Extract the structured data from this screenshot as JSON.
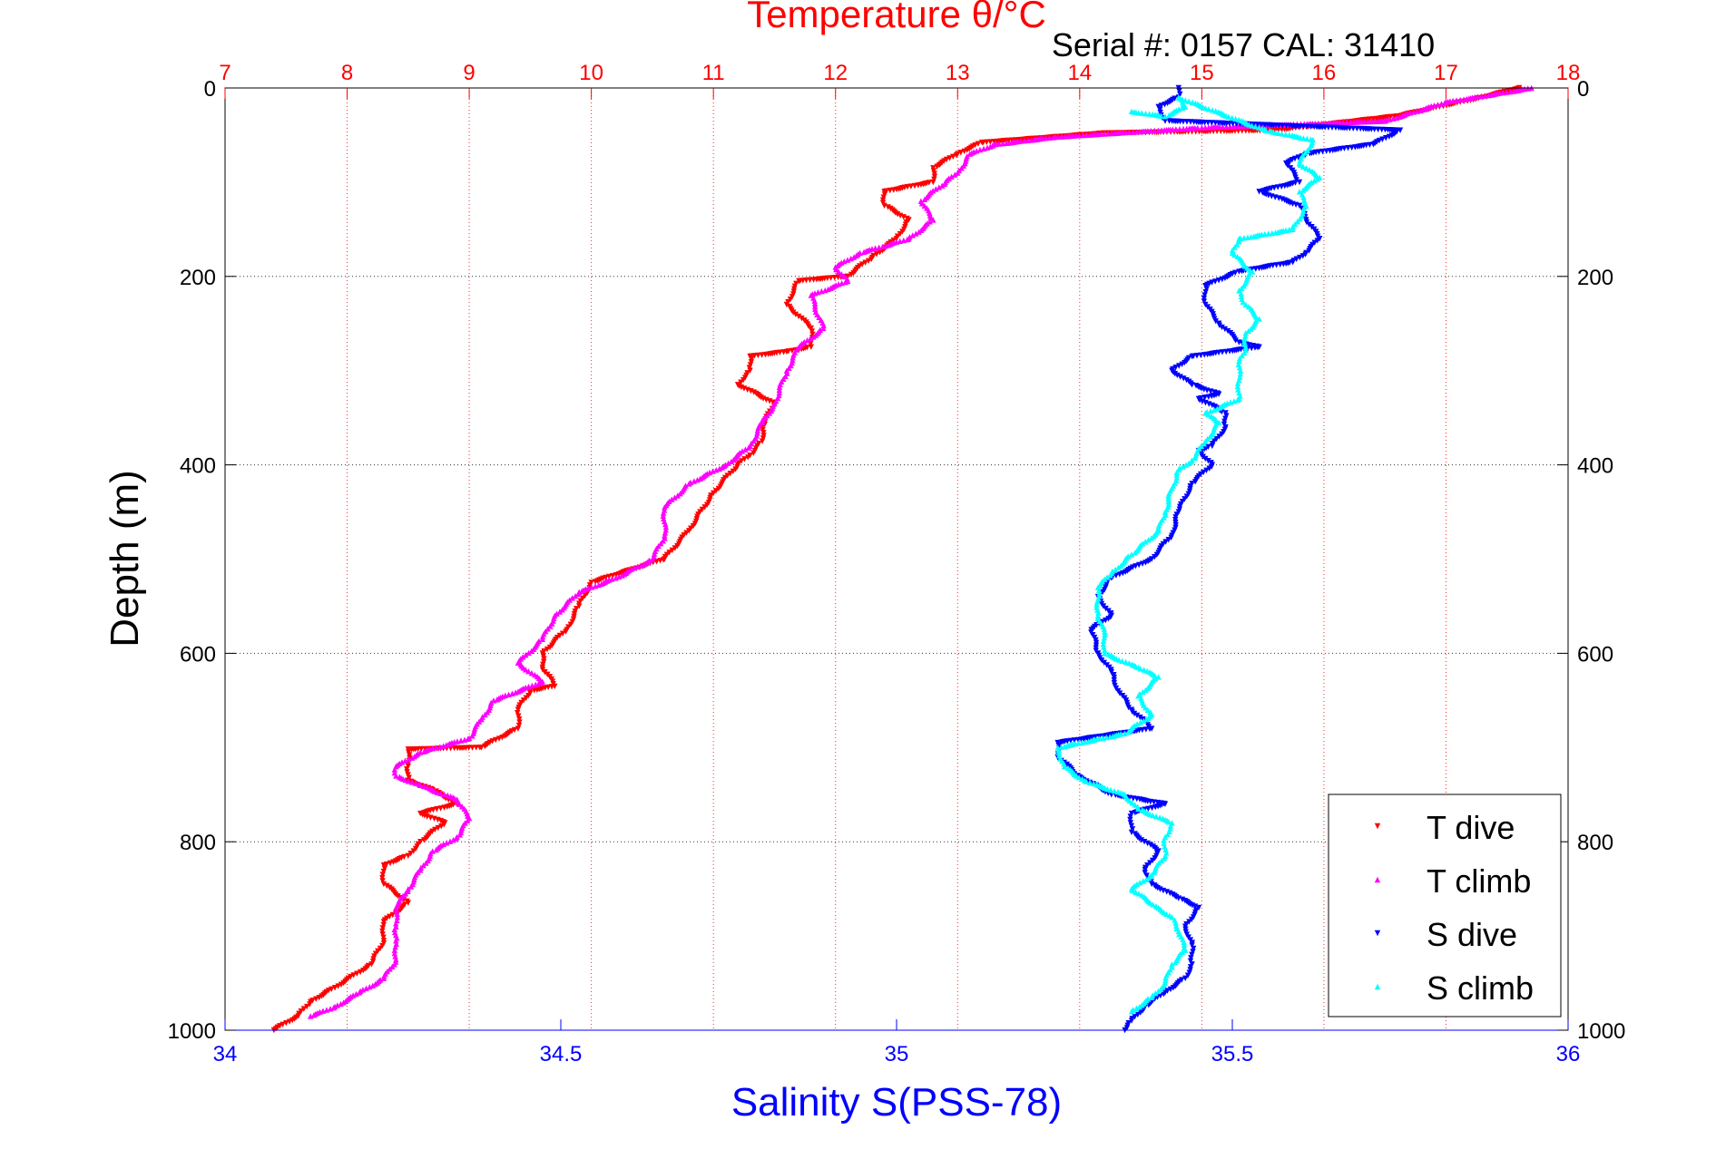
{
  "chart_data": {
    "type": "scatter",
    "title": "Temperature θ/°C",
    "subtitle": "Serial #: 0157  CAL: 31410",
    "ylabel": "Depth (m)",
    "xlabel": "Salinity S(PSS-78)",
    "ylim": [
      0,
      1000
    ],
    "y_reversed": true,
    "yticks": [
      0,
      200,
      400,
      600,
      800,
      1000
    ],
    "x_top": {
      "label": "Temperature θ/°C",
      "range": [
        7,
        18
      ],
      "ticks": [
        7,
        8,
        9,
        10,
        11,
        12,
        13,
        14,
        15,
        16,
        17,
        18
      ],
      "color": "#ff0000"
    },
    "x_bottom": {
      "label": "Salinity S(PSS-78)",
      "range": [
        34,
        36
      ],
      "ticks": [
        34,
        34.5,
        35,
        35.5,
        36
      ],
      "color": "#0000ff"
    },
    "grid": true,
    "legend_position": "bottom-right",
    "series": [
      {
        "name": "T dive",
        "axis": "temperature",
        "color": "#ff0000",
        "marker": "triangle-down",
        "points": [
          [
            17.6,
            0
          ],
          [
            17.3,
            10
          ],
          [
            16.6,
            30
          ],
          [
            15.6,
            45
          ],
          [
            14.2,
            48
          ],
          [
            13.2,
            58
          ],
          [
            13.0,
            70
          ],
          [
            12.8,
            85
          ],
          [
            12.8,
            100
          ],
          [
            12.4,
            110
          ],
          [
            12.4,
            125
          ],
          [
            12.6,
            140
          ],
          [
            12.5,
            160
          ],
          [
            12.3,
            180
          ],
          [
            12.1,
            200
          ],
          [
            11.7,
            205
          ],
          [
            11.6,
            230
          ],
          [
            11.8,
            255
          ],
          [
            11.8,
            275
          ],
          [
            11.6,
            280
          ],
          [
            11.3,
            285
          ],
          [
            11.3,
            300
          ],
          [
            11.2,
            315
          ],
          [
            11.5,
            335
          ],
          [
            11.4,
            360
          ],
          [
            11.4,
            375
          ],
          [
            11.3,
            390
          ],
          [
            11.2,
            400
          ],
          [
            11.0,
            430
          ],
          [
            10.8,
            470
          ],
          [
            10.6,
            500
          ],
          [
            10.0,
            525
          ],
          [
            9.9,
            550
          ],
          [
            9.8,
            575
          ],
          [
            9.6,
            600
          ],
          [
            9.6,
            615
          ],
          [
            9.7,
            635
          ],
          [
            9.5,
            640
          ],
          [
            9.4,
            660
          ],
          [
            9.4,
            680
          ],
          [
            9.1,
            700
          ],
          [
            8.5,
            702
          ],
          [
            8.5,
            720
          ],
          [
            8.5,
            735
          ],
          [
            8.7,
            745
          ],
          [
            8.9,
            760
          ],
          [
            8.6,
            770
          ],
          [
            8.8,
            780
          ],
          [
            8.6,
            800
          ],
          [
            8.5,
            815
          ],
          [
            8.3,
            825
          ],
          [
            8.3,
            845
          ],
          [
            8.5,
            865
          ],
          [
            8.3,
            885
          ],
          [
            8.3,
            905
          ],
          [
            8.2,
            930
          ],
          [
            7.9,
            955
          ],
          [
            7.7,
            970
          ],
          [
            7.6,
            985
          ],
          [
            7.4,
            1000
          ]
        ]
      },
      {
        "name": "T climb",
        "axis": "temperature",
        "color": "#ff00ff",
        "marker": "triangle-up",
        "points": [
          [
            17.7,
            0
          ],
          [
            17.0,
            15
          ],
          [
            16.5,
            35
          ],
          [
            15.0,
            42
          ],
          [
            13.8,
            52
          ],
          [
            13.3,
            60
          ],
          [
            13.1,
            70
          ],
          [
            13.0,
            90
          ],
          [
            12.9,
            100
          ],
          [
            12.7,
            120
          ],
          [
            12.8,
            140
          ],
          [
            12.6,
            160
          ],
          [
            12.2,
            175
          ],
          [
            12.0,
            190
          ],
          [
            12.1,
            205
          ],
          [
            11.8,
            220
          ],
          [
            11.9,
            255
          ],
          [
            11.7,
            275
          ],
          [
            11.6,
            300
          ],
          [
            11.5,
            335
          ],
          [
            11.4,
            355
          ],
          [
            11.3,
            380
          ],
          [
            11.1,
            400
          ],
          [
            10.8,
            420
          ],
          [
            10.6,
            445
          ],
          [
            10.6,
            475
          ],
          [
            10.5,
            500
          ],
          [
            10.2,
            520
          ],
          [
            9.9,
            535
          ],
          [
            9.7,
            560
          ],
          [
            9.6,
            585
          ],
          [
            9.4,
            610
          ],
          [
            9.6,
            630
          ],
          [
            9.2,
            650
          ],
          [
            9.1,
            670
          ],
          [
            9.0,
            690
          ],
          [
            8.6,
            705
          ],
          [
            8.4,
            720
          ],
          [
            8.4,
            730
          ],
          [
            8.6,
            740
          ],
          [
            8.9,
            755
          ],
          [
            9.0,
            775
          ],
          [
            8.9,
            795
          ],
          [
            8.7,
            810
          ],
          [
            8.6,
            830
          ],
          [
            8.5,
            850
          ],
          [
            8.4,
            870
          ],
          [
            8.4,
            890
          ],
          [
            8.4,
            905
          ],
          [
            8.4,
            925
          ],
          [
            8.3,
            945
          ],
          [
            8.1,
            960
          ],
          [
            7.9,
            975
          ],
          [
            7.7,
            985
          ]
        ]
      },
      {
        "name": "S dive",
        "axis": "salinity",
        "color": "#0000ff",
        "marker": "triangle-down",
        "points": [
          [
            35.42,
            0
          ],
          [
            35.42,
            10
          ],
          [
            35.39,
            20
          ],
          [
            35.4,
            35
          ],
          [
            35.75,
            45
          ],
          [
            35.71,
            60
          ],
          [
            35.61,
            70
          ],
          [
            35.58,
            80
          ],
          [
            35.6,
            100
          ],
          [
            35.54,
            110
          ],
          [
            35.6,
            125
          ],
          [
            35.61,
            140
          ],
          [
            35.63,
            160
          ],
          [
            35.61,
            175
          ],
          [
            35.59,
            185
          ],
          [
            35.51,
            195
          ],
          [
            35.46,
            210
          ],
          [
            35.46,
            230
          ],
          [
            35.48,
            250
          ],
          [
            35.51,
            270
          ],
          [
            35.54,
            275
          ],
          [
            35.44,
            285
          ],
          [
            35.41,
            300
          ],
          [
            35.44,
            315
          ],
          [
            35.48,
            325
          ],
          [
            35.45,
            330
          ],
          [
            35.49,
            345
          ],
          [
            35.49,
            360
          ],
          [
            35.47,
            380
          ],
          [
            35.45,
            385
          ],
          [
            35.47,
            400
          ],
          [
            35.44,
            420
          ],
          [
            35.42,
            450
          ],
          [
            35.41,
            475
          ],
          [
            35.38,
            500
          ],
          [
            35.32,
            520
          ],
          [
            35.3,
            540
          ],
          [
            35.32,
            560
          ],
          [
            35.29,
            575
          ],
          [
            35.3,
            600
          ],
          [
            35.32,
            620
          ],
          [
            35.33,
            640
          ],
          [
            35.35,
            660
          ],
          [
            35.38,
            680
          ],
          [
            35.24,
            695
          ],
          [
            35.24,
            710
          ],
          [
            35.27,
            730
          ],
          [
            35.32,
            750
          ],
          [
            35.4,
            760
          ],
          [
            35.35,
            770
          ],
          [
            35.35,
            790
          ],
          [
            35.39,
            810
          ],
          [
            35.37,
            830
          ],
          [
            35.38,
            845
          ],
          [
            35.42,
            860
          ],
          [
            35.45,
            870
          ],
          [
            35.43,
            890
          ],
          [
            35.44,
            910
          ],
          [
            35.44,
            930
          ],
          [
            35.43,
            945
          ],
          [
            35.4,
            960
          ],
          [
            35.37,
            975
          ],
          [
            35.35,
            990
          ],
          [
            35.34,
            1000
          ]
        ]
      },
      {
        "name": "S climb",
        "axis": "salinity",
        "color": "#00ffff",
        "marker": "triangle-up",
        "points": [
          [
            35.35,
            25
          ],
          [
            35.4,
            30
          ],
          [
            35.43,
            20
          ],
          [
            35.42,
            10
          ],
          [
            35.55,
            45
          ],
          [
            35.62,
            55
          ],
          [
            35.6,
            80
          ],
          [
            35.63,
            95
          ],
          [
            35.6,
            110
          ],
          [
            35.61,
            125
          ],
          [
            35.59,
            150
          ],
          [
            35.51,
            160
          ],
          [
            35.5,
            175
          ],
          [
            35.53,
            195
          ],
          [
            35.51,
            215
          ],
          [
            35.52,
            230
          ],
          [
            35.54,
            245
          ],
          [
            35.52,
            260
          ],
          [
            35.52,
            275
          ],
          [
            35.51,
            290
          ],
          [
            35.51,
            310
          ],
          [
            35.51,
            330
          ],
          [
            35.46,
            345
          ],
          [
            35.48,
            355
          ],
          [
            35.46,
            375
          ],
          [
            35.44,
            395
          ],
          [
            35.42,
            405
          ],
          [
            35.41,
            425
          ],
          [
            35.4,
            450
          ],
          [
            35.39,
            470
          ],
          [
            35.35,
            495
          ],
          [
            35.32,
            515
          ],
          [
            35.3,
            530
          ],
          [
            35.3,
            560
          ],
          [
            35.31,
            580
          ],
          [
            35.31,
            600
          ],
          [
            35.36,
            615
          ],
          [
            35.39,
            625
          ],
          [
            35.36,
            645
          ],
          [
            35.38,
            665
          ],
          [
            35.34,
            685
          ],
          [
            35.24,
            700
          ],
          [
            35.25,
            720
          ],
          [
            35.28,
            735
          ],
          [
            35.34,
            750
          ],
          [
            35.36,
            765
          ],
          [
            35.41,
            780
          ],
          [
            35.4,
            795
          ],
          [
            35.4,
            815
          ],
          [
            35.38,
            835
          ],
          [
            35.35,
            850
          ],
          [
            35.39,
            870
          ],
          [
            35.41,
            880
          ],
          [
            35.42,
            895
          ],
          [
            35.43,
            915
          ],
          [
            35.41,
            930
          ],
          [
            35.4,
            950
          ],
          [
            35.38,
            965
          ],
          [
            35.35,
            980
          ]
        ]
      }
    ]
  }
}
